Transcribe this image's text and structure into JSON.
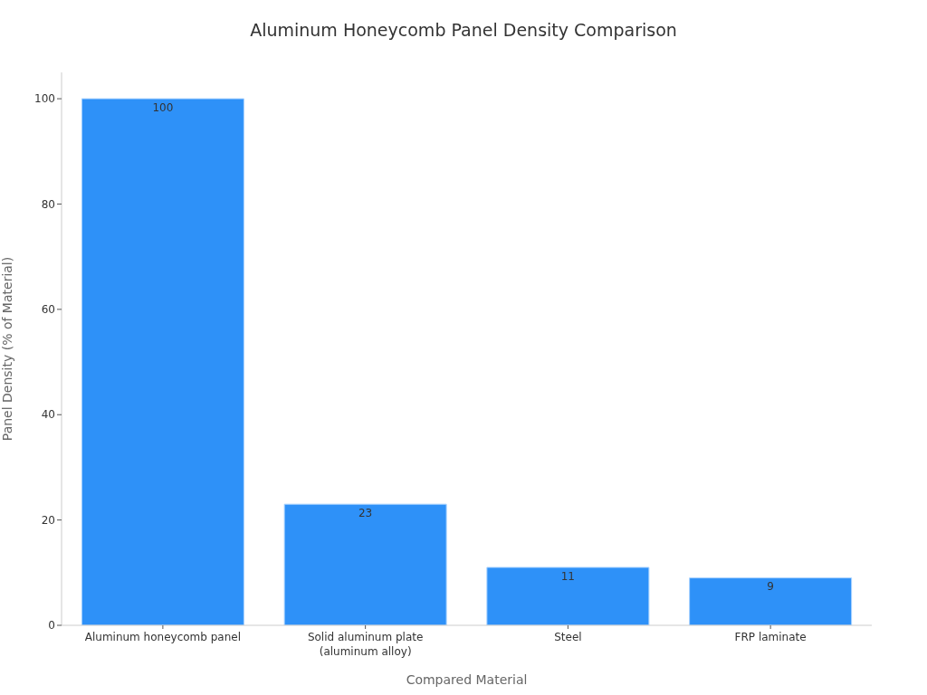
{
  "chart_data": {
    "type": "bar",
    "title": "Aluminum Honeycomb Panel Density Comparison",
    "xlabel": "Compared Material",
    "ylabel": "Panel Density (% of Material)",
    "categories": [
      "Aluminum honeycomb panel",
      "Solid aluminum plate\n(aluminum alloy)",
      "Steel",
      "FRP laminate"
    ],
    "values": [
      100,
      23,
      11,
      9
    ],
    "color": "#2e91f8",
    "ylim": [
      0,
      105
    ],
    "yticks": [
      0,
      20,
      40,
      60,
      80,
      100
    ],
    "data_labels": true
  }
}
